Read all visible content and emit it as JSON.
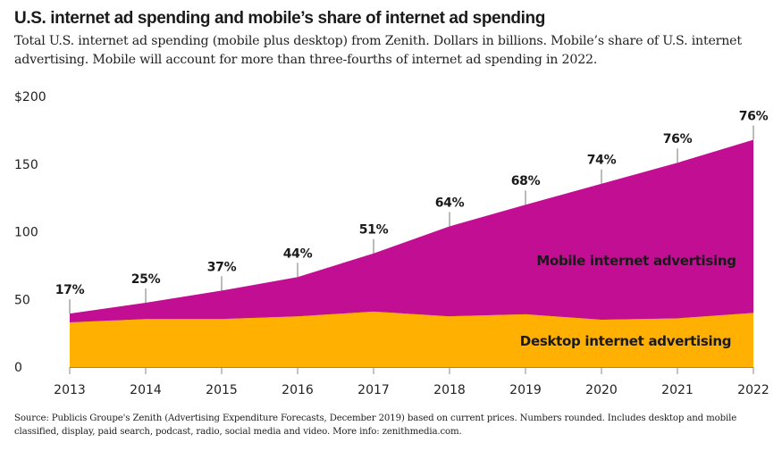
{
  "header": {
    "title": "U.S. internet ad spending and mobile’s share of internet ad spending",
    "subtitle": "Total U.S. internet ad spending (mobile plus desktop) from Zenith. Dollars in billions. Mobile’s share of U.S. internet advertising. Mobile will account for more than three-fourths of internet ad spending in 2022."
  },
  "footer": {
    "source": "Source: Publicis Groupe's Zenith (Advertising Expenditure Forecasts, December 2019) based on current prices. Numbers rounded. Includes desktop and mobile classified, display, paid search, podcast, radio, social media and video. More info: zenithmedia.com."
  },
  "chart_data": {
    "type": "area",
    "stacked": true,
    "title": "U.S. internet ad spending and mobile’s share of internet ad spending",
    "xlabel": "",
    "ylabel": "Dollars in billions",
    "x": [
      2013,
      2014,
      2015,
      2016,
      2017,
      2018,
      2019,
      2020,
      2021,
      2022
    ],
    "x_tick_labels": [
      "2013",
      "2014",
      "2015",
      "2016",
      "2017",
      "2018",
      "2019",
      "2020",
      "2021",
      "2022"
    ],
    "ylim": [
      0,
      200
    ],
    "y_ticks": [
      0,
      50,
      100,
      150,
      200
    ],
    "y_tick_labels": [
      "0",
      "50",
      "100",
      "150",
      "$200"
    ],
    "grid": false,
    "series": [
      {
        "name": "Desktop internet advertising",
        "color": "#FFB000",
        "values": [
          33,
          35.5,
          35.5,
          37.5,
          41,
          37.5,
          39,
          35,
          36,
          40
        ]
      },
      {
        "name": "Mobile internet advertising",
        "color": "#C20E93",
        "values": [
          6.5,
          12,
          21,
          29,
          43,
          66.5,
          81,
          100.5,
          115,
          128
        ]
      }
    ],
    "totals": [
      39.5,
      47.5,
      56.5,
      66.5,
      84,
      104,
      120,
      135.5,
      151,
      168
    ],
    "annotations": {
      "mobile_share_labels": [
        "17%",
        "25%",
        "37%",
        "44%",
        "51%",
        "64%",
        "68%",
        "74%",
        "76%",
        "76%"
      ]
    },
    "legend": "inline-labels-in-areas"
  }
}
